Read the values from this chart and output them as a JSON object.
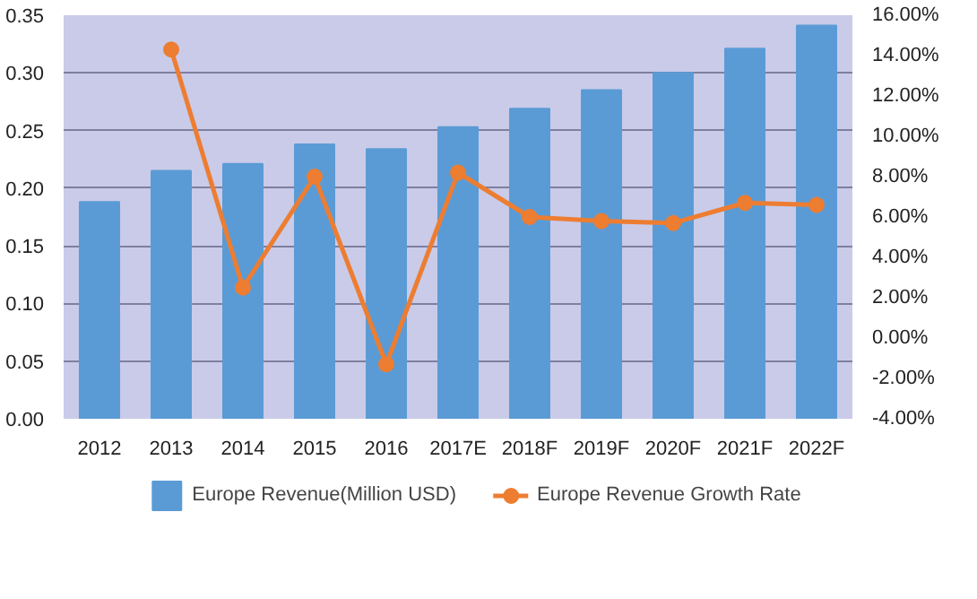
{
  "chart_data": {
    "type": "bar",
    "categories": [
      "2012",
      "2013",
      "2014",
      "2015",
      "2016",
      "2017E",
      "2018F",
      "2019F",
      "2020F",
      "2021F",
      "2022F"
    ],
    "series": [
      {
        "name": "Europe Revenue(Million USD)",
        "color": "#5b9bd5",
        "values": [
          0.188,
          0.215,
          0.221,
          0.238,
          0.234,
          0.253,
          0.269,
          0.285,
          0.3,
          0.321,
          0.341
        ]
      },
      {
        "name": "Europe Revenue Growth Rate",
        "type": "line",
        "axis": "y2",
        "color": "#ed7d31",
        "marker": "circle",
        "values": [
          null,
          14.3,
          2.5,
          8.0,
          -1.3,
          8.2,
          6.0,
          5.8,
          5.7,
          6.7,
          6.6
        ]
      }
    ],
    "ylim": [
      0,
      0.35
    ],
    "yticks": [
      {
        "value": 0,
        "label": "0.00"
      },
      {
        "value": 0.05,
        "label": "0.05"
      },
      {
        "value": 0.1,
        "label": "0.10"
      },
      {
        "value": 0.15,
        "label": "0.15"
      },
      {
        "value": 0.2,
        "label": "0.20"
      },
      {
        "value": 0.25,
        "label": "0.25"
      },
      {
        "value": 0.3,
        "label": "0.30"
      },
      {
        "value": 0.35,
        "label": "0.35"
      }
    ],
    "y2lim": [
      -4,
      16
    ],
    "y2ticks": [
      {
        "value": -4,
        "label": "-4.00%"
      },
      {
        "value": -2,
        "label": "-2.00%"
      },
      {
        "value": 0,
        "label": "0.00%"
      },
      {
        "value": 2,
        "label": "2.00%"
      },
      {
        "value": 4,
        "label": "4.00%"
      },
      {
        "value": 6,
        "label": "6.00%"
      },
      {
        "value": 8,
        "label": "8.00%"
      },
      {
        "value": 10,
        "label": "10.00%"
      },
      {
        "value": 12,
        "label": "12.00%"
      },
      {
        "value": 14,
        "label": "14.00%"
      },
      {
        "value": 16,
        "label": "16.00%"
      }
    ],
    "grid": "y",
    "legend": "bottom"
  }
}
